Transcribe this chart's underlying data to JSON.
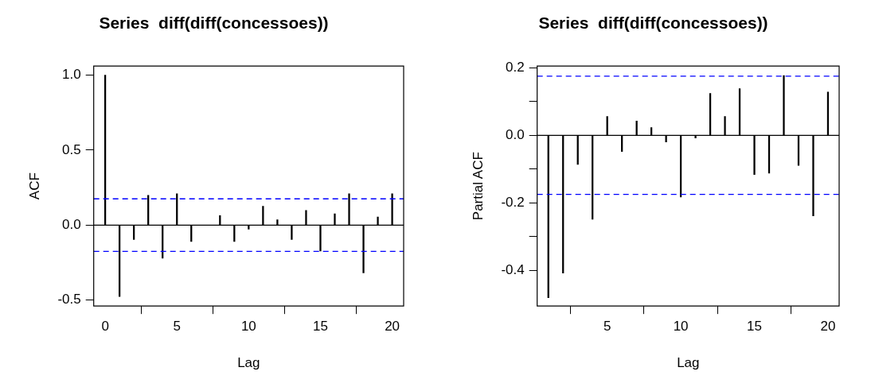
{
  "chart_data": [
    {
      "type": "bar",
      "title": "Series  diff(diff(concessoes))",
      "xlabel": "Lag",
      "ylabel": "ACF",
      "color": "#000000",
      "x": [
        0,
        1,
        2,
        3,
        4,
        5,
        6,
        7,
        8,
        9,
        10,
        11,
        12,
        13,
        14,
        15,
        16,
        17,
        18,
        19,
        20
      ],
      "values": [
        1.0,
        -0.476,
        -0.096,
        0.198,
        -0.221,
        0.209,
        -0.109,
        null,
        0.063,
        -0.109,
        -0.027,
        0.125,
        0.035,
        -0.096,
        0.098,
        -0.173,
        0.075,
        0.209,
        -0.319,
        0.054,
        0.209
      ],
      "xlim": [
        -0.8,
        20.8
      ],
      "xticks": [
        0,
        5,
        10,
        15,
        20
      ],
      "ylim": [
        -0.54,
        1.06
      ],
      "yticks": [
        {
          "value": -0.5,
          "label": "-0.5"
        },
        {
          "value": 0,
          "label": "0.0"
        },
        {
          "value": 0.5,
          "label": "0.5"
        },
        {
          "value": 1,
          "label": "1.0"
        }
      ],
      "ref_lines": [
        {
          "axis": "y",
          "value": 0,
          "color": "#000000",
          "line_style": "solid"
        },
        {
          "axis": "y",
          "value": 0.175,
          "color": "#0000ff",
          "line_style": "dashed"
        },
        {
          "axis": "y",
          "value": -0.175,
          "color": "#0000ff",
          "line_style": "dashed"
        }
      ]
    },
    {
      "type": "bar",
      "title": "Series  diff(diff(concessoes))",
      "xlabel": "Lag",
      "ylabel": "Partial ACF",
      "color": "#000000",
      "x": [
        1,
        2,
        3,
        4,
        5,
        6,
        7,
        8,
        9,
        10,
        11,
        12,
        13,
        14,
        15,
        16,
        17,
        18,
        19,
        20
      ],
      "values": [
        -0.481,
        -0.408,
        -0.086,
        -0.249,
        0.056,
        -0.048,
        0.042,
        0.023,
        -0.02,
        -0.183,
        -0.008,
        0.124,
        0.056,
        0.138,
        -0.116,
        -0.112,
        0.177,
        -0.089,
        -0.239,
        0.128
      ],
      "xlim": [
        0.24,
        20.76
      ],
      "xticks": [
        5,
        10,
        15,
        20
      ],
      "ylim": [
        -0.506,
        0.205
      ],
      "yticks": [
        {
          "value": -0.4,
          "label": "-0.4"
        },
        {
          "value": -0.3,
          "label": null
        },
        {
          "value": -0.2,
          "label": "-0.2"
        },
        {
          "value": -0.1,
          "label": null
        },
        {
          "value": 0.0,
          "label": "0.0"
        },
        {
          "value": 0.1,
          "label": null
        },
        {
          "value": 0.2,
          "label": "0.2"
        }
      ],
      "ref_lines": [
        {
          "axis": "y",
          "value": 0,
          "color": "#000000",
          "line_style": "solid"
        },
        {
          "axis": "y",
          "value": 0.175,
          "color": "#0000ff",
          "line_style": "dashed"
        },
        {
          "axis": "y",
          "value": -0.175,
          "color": "#0000ff",
          "line_style": "dashed"
        }
      ]
    }
  ]
}
